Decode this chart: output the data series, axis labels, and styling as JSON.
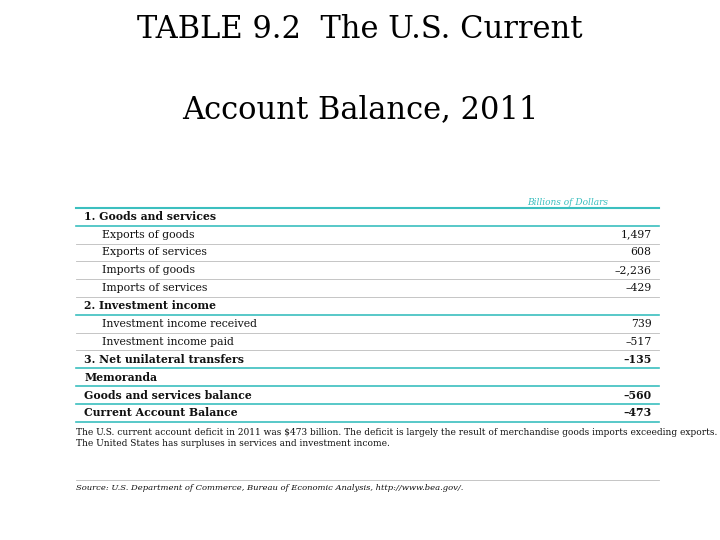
{
  "title_line1": "TABLE 9.2  The U.S. Current",
  "title_line2": "Account Balance, 2011",
  "subtitle": "Billions of Dollars",
  "subtitle_color": "#3BBFBF",
  "background_color": "#ffffff",
  "title_color": "#000000",
  "title_fontsize": 22,
  "rows": [
    {
      "label": "1. Goods and services",
      "value": "",
      "bold": true,
      "indent": 0,
      "section_header": true
    },
    {
      "label": "Exports of goods",
      "value": "1,497",
      "bold": false,
      "indent": 1,
      "section_header": false
    },
    {
      "label": "Exports of services",
      "value": "608",
      "bold": false,
      "indent": 1,
      "section_header": false
    },
    {
      "label": "Imports of goods",
      "value": "–2,236",
      "bold": false,
      "indent": 1,
      "section_header": false
    },
    {
      "label": "Imports of services",
      "value": "–429",
      "bold": false,
      "indent": 1,
      "section_header": false
    },
    {
      "label": "2. Investment income",
      "value": "",
      "bold": true,
      "indent": 0,
      "section_header": true
    },
    {
      "label": "Investment income received",
      "value": "739",
      "bold": false,
      "indent": 1,
      "section_header": false
    },
    {
      "label": "Investment income paid",
      "value": "–517",
      "bold": false,
      "indent": 1,
      "section_header": false
    },
    {
      "label": "3. Net unilateral transfers",
      "value": "–135",
      "bold": true,
      "indent": 0,
      "section_header": true
    },
    {
      "label": "Memoranda",
      "value": "",
      "bold": true,
      "indent": 0,
      "section_header": true
    },
    {
      "label": "Goods and services balance",
      "value": "–560",
      "bold": true,
      "indent": 0,
      "section_header": false
    },
    {
      "label": "Current Account Balance",
      "value": "–473",
      "bold": true,
      "indent": 0,
      "section_header": false
    }
  ],
  "footer_text": "The U.S. current account deficit in 2011 was $473 billion. The deficit is largely the result of merchandise goods imports exceeding exports. The United States has surpluses in services and investment income.",
  "source_text": "Source: U.S. Department of Commerce, Bureau of Economic Analysis, http://www.bea.gov/.",
  "table_line_color": "#3BBFBF",
  "row_line_color": "#bbbbbb",
  "bold_line_color": "#3BBFBF",
  "text_color": "#111111",
  "font_family": "DejaVu Serif"
}
